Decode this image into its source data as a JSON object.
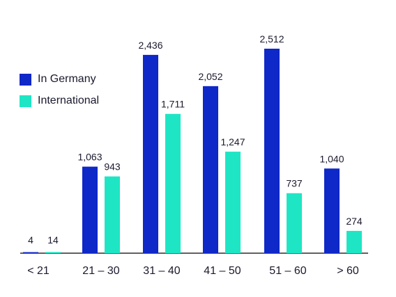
{
  "chart_data": {
    "type": "bar",
    "categories": [
      "< 21",
      "21 – 30",
      "31 – 40",
      "41 – 50",
      "51 – 60",
      "> 60"
    ],
    "series": [
      {
        "name": "In Germany",
        "values": [
          4,
          1063,
          2436,
          2052,
          2512,
          1040
        ],
        "labels": [
          "4",
          "1,063",
          "2,436",
          "2,052",
          "2,512",
          "1,040"
        ]
      },
      {
        "name": "International",
        "values": [
          14,
          943,
          1711,
          1247,
          737,
          274
        ],
        "labels": [
          "14",
          "943",
          "1,711",
          "1,247",
          "737",
          "274"
        ]
      }
    ],
    "ylim": [
      0,
      2600
    ],
    "grid": false,
    "legend_position": "left",
    "colors": {
      "in_germany": "#0f28c8",
      "international": "#1ee6c5",
      "axis": "#000000",
      "text": "#1a1a2e"
    }
  }
}
